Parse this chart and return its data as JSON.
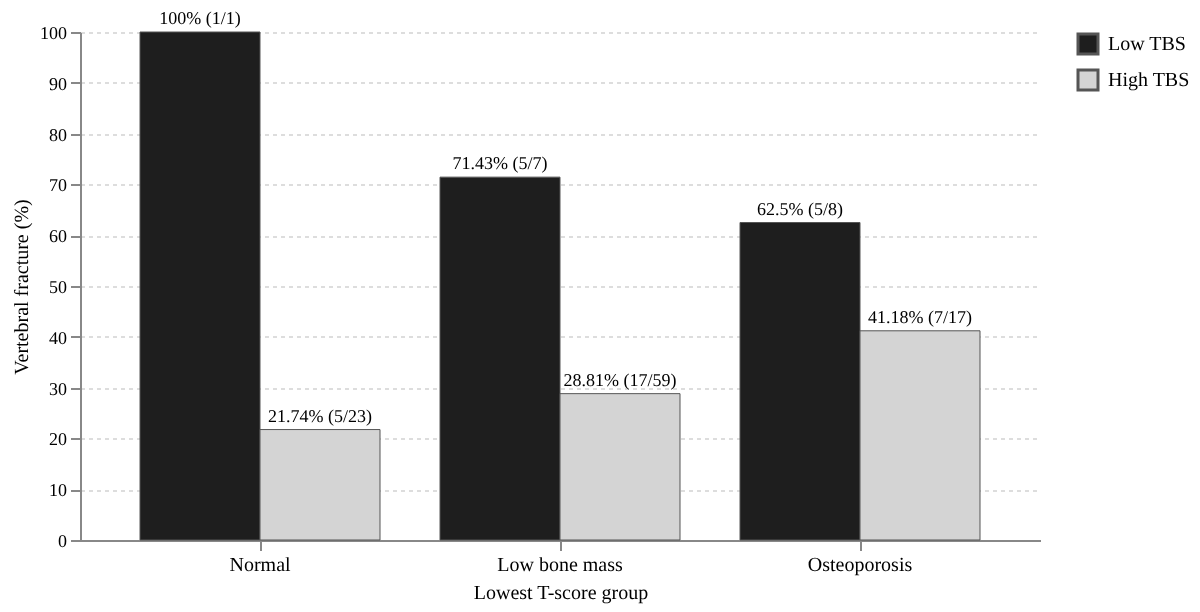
{
  "chart_data": {
    "type": "bar",
    "xlabel": "Lowest T-score group",
    "ylabel": "Vertebral fracture (%)",
    "categories": [
      "Normal",
      "Low bone mass",
      "Osteoporosis"
    ],
    "series": [
      {
        "name": "Low TBS",
        "color": "#1e1e1e",
        "values": [
          100,
          71.43,
          62.5
        ],
        "value_labels": [
          "100% (1/1)",
          "71.43% (5/7)",
          "62.5% (5/8)"
        ]
      },
      {
        "name": "High TBS",
        "color": "#d4d4d4",
        "values": [
          21.74,
          28.81,
          41.18
        ],
        "value_labels": [
          "21.74% (5/23)",
          "28.81% (17/59)",
          "41.18% (7/17)"
        ]
      }
    ],
    "ylim": [
      0,
      100
    ],
    "yticks": [
      0,
      10,
      20,
      30,
      40,
      50,
      60,
      70,
      80,
      90,
      100
    ],
    "grid": "y",
    "legend": "right"
  }
}
